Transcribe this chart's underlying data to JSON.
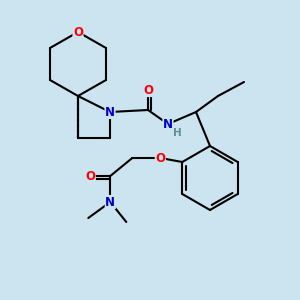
{
  "bg_color": "#cce4ef",
  "bond_color": "#000000",
  "bond_width": 1.5,
  "atom_colors": {
    "O": "#ff0000",
    "N": "#0000cd",
    "H": "#5f8f8f",
    "C": "#000000"
  },
  "font_size_atom": 8.5,
  "font_size_h": 7.5
}
